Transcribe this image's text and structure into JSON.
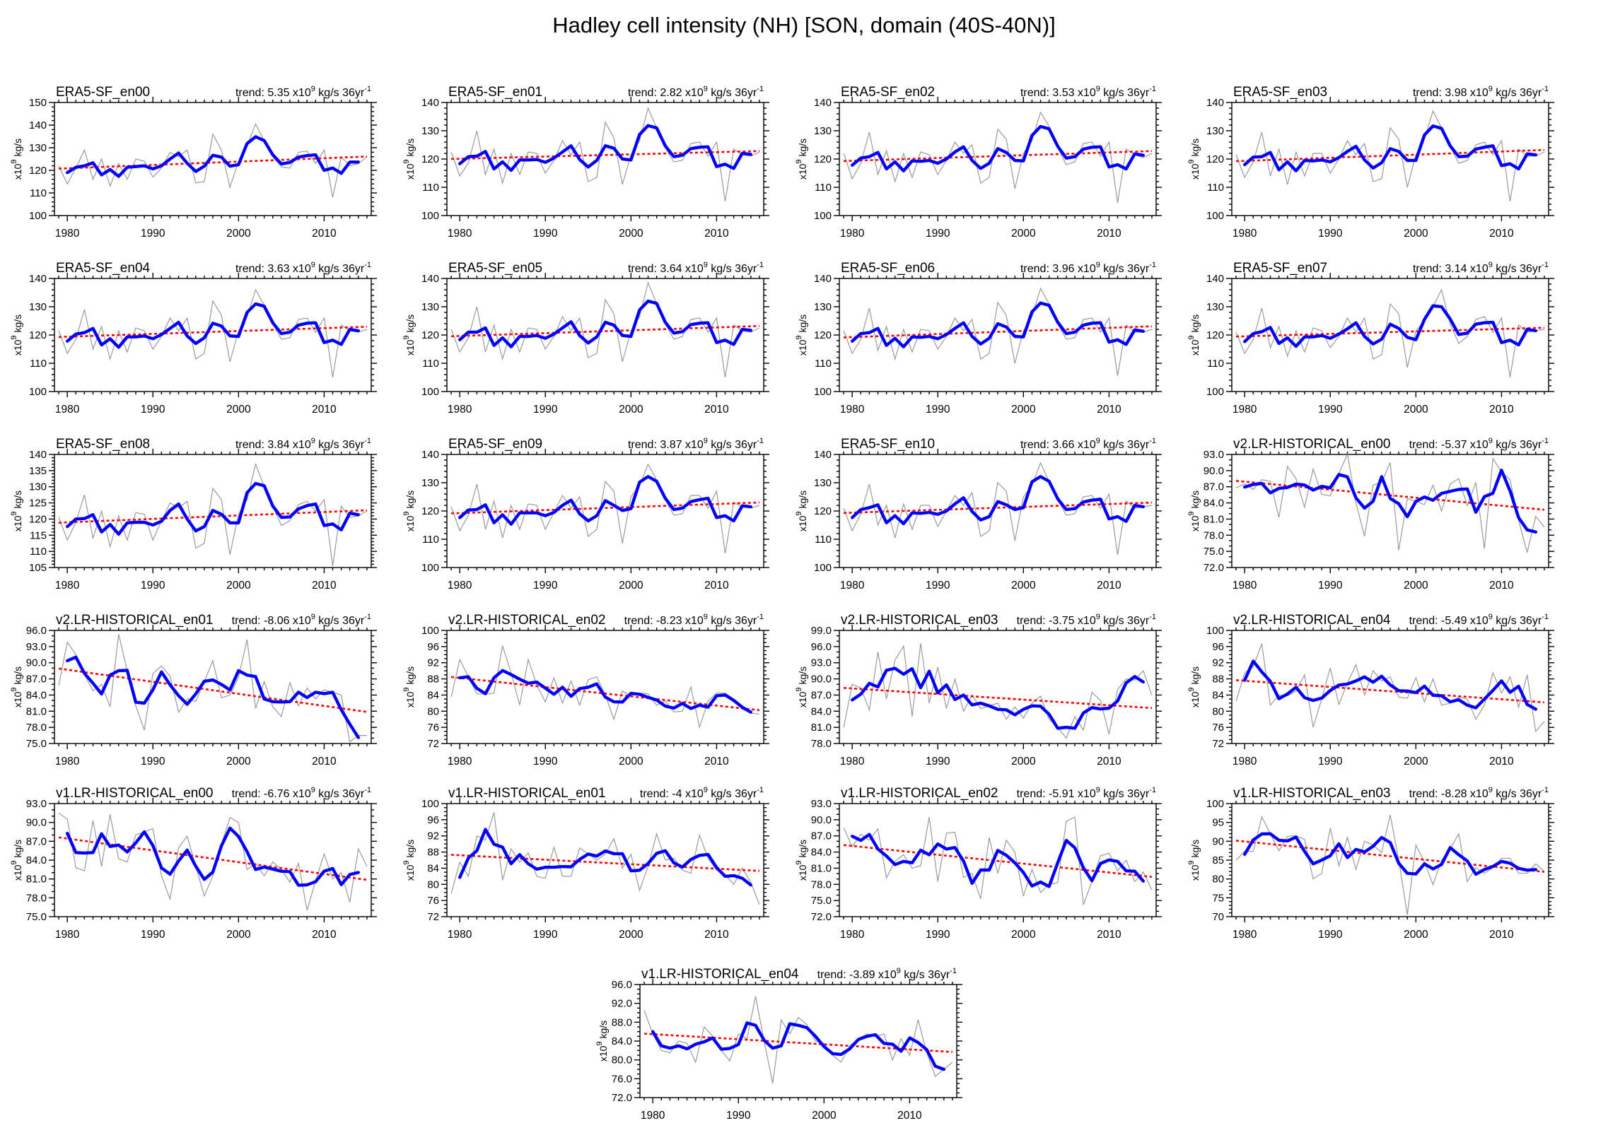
{
  "page_title": "Hadley cell intensity (NH) [SON, domain (40S-40N)]",
  "colors": {
    "raw_line": "#9a9a9a",
    "smoothed_line": "#0000ff",
    "trend_line": "#ff0000",
    "frame": "#000000"
  },
  "axis": {
    "start_year": 1979,
    "end_year": 2015,
    "x_range": [
      1978.5,
      2015.5
    ],
    "x_major_ticks": [
      1980,
      1990,
      2000,
      2010
    ],
    "x_minor_step": 1,
    "unit_label": {
      "prefix": "x10",
      "sup": "9",
      "suffix": " kg/s"
    }
  },
  "trend_label_parts": {
    "prefix": "trend: ",
    "mid": " x10",
    "sup": "9",
    "mid2": " kg/s 36yr",
    "sup2": "-1"
  },
  "chart_data": [
    {
      "type": "line",
      "title": "ERA5-SF_en00",
      "trend": "5.35",
      "ylim": [
        100,
        150
      ],
      "ystep": 10,
      "decimals": 0,
      "values": [
        122,
        114,
        121,
        129,
        116,
        125,
        113,
        123,
        116,
        125,
        124,
        117,
        121,
        128,
        126,
        129,
        114.5,
        115,
        136,
        129,
        112.5,
        124,
        131,
        140.5,
        133,
        126,
        121.5,
        121,
        128,
        128.5,
        123,
        129,
        108,
        126,
        122,
        123,
        126
      ]
    },
    {
      "type": "line",
      "title": "ERA5-SF_en01",
      "trend": "2.82",
      "ylim": [
        100,
        140
      ],
      "ystep": 10,
      "decimals": 0,
      "values": [
        122.5,
        114,
        118.5,
        130,
        114.5,
        123.5,
        111.5,
        122,
        114.5,
        122.5,
        122,
        115,
        119.5,
        126.5,
        121.5,
        126,
        112,
        113.5,
        133,
        127.5,
        111,
        121.5,
        126.5,
        138,
        131,
        124,
        119,
        119.5,
        125.5,
        126,
        121,
        126,
        105,
        123.5,
        121.5,
        121,
        122.5
      ]
    },
    {
      "type": "line",
      "title": "ERA5-SF_en02",
      "trend": "3.53",
      "ylim": [
        100,
        140
      ],
      "ystep": 10,
      "decimals": 0,
      "values": [
        122,
        113,
        118.5,
        129.5,
        114.5,
        123,
        112,
        122,
        113.5,
        122.5,
        121.5,
        114.5,
        119.5,
        126,
        122,
        125,
        111.5,
        113.5,
        130.5,
        127,
        109.5,
        122,
        126.5,
        136.5,
        131.5,
        124,
        118,
        119,
        125.5,
        126,
        121,
        126,
        104.5,
        123.5,
        121.5,
        120.5,
        122
      ]
    },
    {
      "type": "line",
      "title": "ERA5-SF_en03",
      "trend": "3.98",
      "ylim": [
        100,
        140
      ],
      "ystep": 10,
      "decimals": 0,
      "values": [
        121.5,
        113.5,
        119,
        129.5,
        114,
        123.5,
        111,
        122.5,
        114,
        122,
        122,
        115,
        120,
        126.5,
        121.5,
        125.5,
        112,
        113,
        131,
        127,
        110,
        121.5,
        127,
        137,
        131,
        124.5,
        118.5,
        119.5,
        125,
        126,
        121.5,
        126.5,
        105,
        123.5,
        121,
        121,
        122.5
      ]
    },
    {
      "type": "line",
      "title": "ERA5-SF_en04",
      "trend": "3.63",
      "ylim": [
        100,
        140
      ],
      "ystep": 10,
      "decimals": 0,
      "values": [
        121.5,
        113.5,
        118.5,
        129,
        115,
        123,
        111.5,
        121.5,
        114,
        122.5,
        121.5,
        115,
        119.5,
        126,
        121.5,
        126,
        111.5,
        113.5,
        132,
        127,
        110.5,
        121.5,
        126.5,
        136,
        130.5,
        124,
        118.5,
        119,
        125.5,
        126,
        121,
        126,
        105,
        123.5,
        121.5,
        121,
        122
      ]
    },
    {
      "type": "line",
      "title": "ERA5-SF_en05",
      "trend": "3.64",
      "ylim": [
        100,
        140
      ],
      "ystep": 10,
      "decimals": 0,
      "values": [
        122,
        114,
        119,
        130,
        114,
        123.5,
        111.5,
        122,
        114,
        122.5,
        122,
        115,
        119.5,
        126.5,
        121.5,
        126,
        112,
        113.5,
        132.5,
        127.5,
        110.5,
        121.5,
        126.5,
        138.5,
        131,
        124,
        118.5,
        119.5,
        125.5,
        126,
        121,
        126,
        105,
        123.5,
        121.5,
        121,
        122.5
      ]
    },
    {
      "type": "line",
      "title": "ERA5-SF_en06",
      "trend": "3.96",
      "ylim": [
        100,
        140
      ],
      "ystep": 10,
      "decimals": 0,
      "values": [
        121.5,
        113.5,
        118.5,
        129.5,
        114.5,
        123,
        111.5,
        122,
        114,
        122,
        121.5,
        115,
        119.5,
        126,
        121.5,
        125.5,
        111.5,
        113.5,
        131.5,
        127,
        110,
        121.5,
        126.5,
        136.5,
        131,
        124,
        118.5,
        119,
        125.5,
        126,
        121,
        126,
        105.5,
        123.5,
        121,
        121,
        122
      ]
    },
    {
      "type": "line",
      "title": "ERA5-SF_en07",
      "trend": "3.14",
      "ylim": [
        100,
        140
      ],
      "ystep": 10,
      "decimals": 0,
      "values": [
        121,
        113.5,
        118.5,
        129.5,
        115.5,
        123,
        112.5,
        121.5,
        114,
        122.5,
        121.5,
        115.5,
        119.5,
        126,
        121,
        126,
        111.5,
        113,
        131,
        127.5,
        108.5,
        121.5,
        125,
        130,
        136,
        124,
        117,
        119.5,
        125.5,
        126.5,
        121,
        126,
        105,
        123.5,
        121,
        121.5,
        122
      ]
    },
    {
      "type": "line",
      "title": "ERA5-SF_en08",
      "trend": "3.84",
      "ylim": [
        105,
        140
      ],
      "ystep": 5,
      "decimals": 0,
      "values": [
        120.5,
        113.5,
        119,
        127.5,
        114,
        122.5,
        111.5,
        121,
        113.5,
        122,
        121.5,
        113.5,
        119.5,
        125,
        123.5,
        125.5,
        111,
        112.5,
        129.5,
        126,
        109,
        121.5,
        126,
        137,
        130,
        124,
        118,
        119.5,
        124.5,
        125.5,
        122.5,
        126,
        105.5,
        124,
        120.5,
        121,
        122.5
      ]
    },
    {
      "type": "line",
      "title": "ERA5-SF_en09",
      "trend": "3.87",
      "ylim": [
        100,
        140
      ],
      "ystep": 10,
      "decimals": 0,
      "values": [
        121.5,
        113,
        118.5,
        129.5,
        113.5,
        123.5,
        110.5,
        122,
        113.5,
        122.5,
        122,
        113.5,
        119.5,
        125.5,
        121,
        125,
        111,
        113.5,
        130.5,
        127,
        108.5,
        125,
        129,
        136.5,
        131,
        124,
        118.5,
        119,
        125.5,
        125.5,
        121,
        127,
        105,
        123,
        121.5,
        121,
        122
      ]
    },
    {
      "type": "line",
      "title": "ERA5-SF_en10",
      "trend": "3.66",
      "ylim": [
        100,
        140
      ],
      "ystep": 10,
      "decimals": 0,
      "values": [
        121,
        113,
        119,
        129.5,
        115,
        122,
        110.5,
        122.5,
        113.5,
        122,
        122,
        114.5,
        120,
        125.5,
        122,
        126.5,
        111,
        113,
        130,
        127,
        109.5,
        125,
        129,
        137,
        130.5,
        124,
        118.5,
        119,
        125,
        125.5,
        121,
        126,
        104.5,
        123.5,
        121,
        121.5,
        122
      ]
    },
    {
      "type": "line",
      "title": "v2.LR-HISTORICAL_en00",
      "trend": "-5.37",
      "ylim": [
        72,
        93
      ],
      "ystep": 3,
      "decimals": 1,
      "values": [
        86.8,
        87.5,
        86.5,
        88.3,
        88,
        81.3,
        90.8,
        88.5,
        83.2,
        90.3,
        85.6,
        85.3,
        89.5,
        93,
        84,
        77.8,
        87.3,
        87.8,
        91.5,
        75.2,
        84.8,
        84.3,
        83.7,
        87.3,
        82.5,
        87.5,
        88.5,
        83.5,
        87.8,
        75.5,
        92.2,
        89.7,
        88.3,
        80.7,
        74.8,
        81.5,
        79.5
      ]
    },
    {
      "type": "line",
      "title": "v2.LR-HISTORICAL_en01",
      "trend": "-8.06",
      "ylim": [
        75,
        96
      ],
      "ystep": 3,
      "decimals": 1,
      "values": [
        85.8,
        93.8,
        91.5,
        87.8,
        84.8,
        86,
        81.8,
        95.3,
        88.5,
        82,
        77.5,
        88,
        89.4,
        87.5,
        80.8,
        83.3,
        82.8,
        86.5,
        90.4,
        83.5,
        84,
        87.3,
        94.3,
        81.5,
        86.5,
        81.8,
        80,
        86.3,
        82,
        85.3,
        83.3,
        85,
        84.5,
        84,
        75.3,
        76.5,
        76.5
      ]
    },
    {
      "type": "line",
      "title": "v2.LR-HISTORICAL_en02",
      "trend": "-8.23",
      "ylim": [
        72,
        100
      ],
      "ystep": 4,
      "decimals": 0,
      "values": [
        83.5,
        92.8,
        88.5,
        84.3,
        84.2,
        84.5,
        96.2,
        89.5,
        81.5,
        92.8,
        86.5,
        82.3,
        88.3,
        82,
        87.5,
        81.5,
        87.8,
        88.5,
        84,
        78,
        85,
        83.8,
        84.5,
        84.3,
        81.5,
        82.5,
        79.8,
        80,
        86,
        76,
        82.5,
        84.5,
        84.5,
        83,
        80.5,
        79.5,
        79.3
      ]
    },
    {
      "type": "line",
      "title": "v2.LR-HISTORICAL_en03",
      "trend": "-3.75",
      "ylim": [
        78,
        99
      ],
      "ystep": 3,
      "decimals": 1,
      "values": [
        81,
        89,
        88.3,
        84.2,
        95,
        86.3,
        93.5,
        96.1,
        83,
        96.6,
        85.5,
        92.2,
        84.5,
        90,
        84,
        87,
        84.5,
        85,
        85.5,
        82.5,
        84.8,
        82.7,
        85.5,
        86.8,
        82.5,
        81,
        79,
        83,
        80.5,
        87.5,
        86,
        79.7,
        88,
        90,
        89.8,
        91.5,
        87
      ]
    },
    {
      "type": "line",
      "title": "v2.LR-HISTORICAL_en04",
      "trend": "-5.49",
      "ylim": [
        72,
        100
      ],
      "ystep": 4,
      "decimals": 0,
      "values": [
        82.5,
        89.5,
        91,
        96.7,
        81.5,
        84,
        83.8,
        85,
        89,
        76,
        83,
        90.7,
        81.7,
        87,
        91.5,
        84,
        90,
        87.5,
        88.5,
        83.5,
        83.2,
        88.3,
        82.3,
        88,
        81.5,
        82,
        83.5,
        83,
        78,
        81.5,
        89.5,
        84.5,
        88.5,
        81,
        89,
        75,
        77.5
      ]
    },
    {
      "type": "line",
      "title": "v1.LR-HISTORICAL_en00",
      "trend": "-6.76",
      "ylim": [
        75,
        93
      ],
      "ystep": 3,
      "decimals": 1,
      "values": [
        91.5,
        90.5,
        82.8,
        82.3,
        90.3,
        83,
        91.3,
        84.2,
        83.7,
        88,
        88.5,
        89,
        81.5,
        77.8,
        86,
        87.8,
        83,
        78.3,
        81.5,
        86.5,
        90.8,
        90,
        82.5,
        83.5,
        81.5,
        83.7,
        82.5,
        80.5,
        83.5,
        76,
        80.7,
        85,
        81,
        82,
        77.3,
        85.8,
        83
      ]
    },
    {
      "type": "line",
      "title": "v1.LR-HISTORICAL_en01",
      "trend": "-4",
      "ylim": [
        72,
        100
      ],
      "ystep": 4,
      "decimals": 0,
      "values": [
        77.7,
        85.5,
        82,
        92,
        91,
        97.8,
        81,
        88.8,
        85.5,
        87.8,
        82,
        81.5,
        89.2,
        82,
        82,
        89,
        87.5,
        86,
        87.5,
        91.3,
        84,
        87.5,
        78.5,
        84.5,
        92.5,
        86,
        86.5,
        83.5,
        82.8,
        92.2,
        86.5,
        83.5,
        82.5,
        80,
        84,
        80.5,
        75
      ]
    },
    {
      "type": "line",
      "title": "v1.LR-HISTORICAL_en02",
      "trend": "-5.91",
      "ylim": [
        72,
        93
      ],
      "ystep": 3,
      "decimals": 1,
      "values": [
        88.5,
        85,
        87.3,
        86.2,
        88.3,
        79.2,
        82.3,
        83.5,
        81,
        81.5,
        90.5,
        78.5,
        87.5,
        87.7,
        79.3,
        80,
        75.3,
        86.7,
        80,
        86.2,
        84,
        75.8,
        80.8,
        76.5,
        78,
        78.3,
        89.7,
        90.5,
        74.2,
        78.5,
        83.3,
        83.8,
        80.5,
        82.5,
        78.5,
        80.3,
        77
      ]
    },
    {
      "type": "line",
      "title": "v1.LR-HISTORICAL_en03",
      "trend": "-8.28",
      "ylim": [
        70,
        100
      ],
      "ystep": 5,
      "decimals": 0,
      "values": [
        85,
        87.3,
        87.3,
        96.5,
        92,
        87.5,
        91.3,
        91.5,
        90.5,
        80,
        81.5,
        93.5,
        83.5,
        91,
        82.5,
        90,
        89,
        87,
        97,
        85,
        70.5,
        89,
        84.5,
        78.5,
        85,
        88,
        92,
        79.3,
        83,
        81.5,
        83,
        85.5,
        85.5,
        81.5,
        81.5,
        84,
        82
      ]
    },
    {
      "type": "line",
      "title": "v1.LR-HISTORICAL_en04",
      "trend": "-3.89",
      "ylim": [
        72,
        96
      ],
      "ystep": 4,
      "decimals": 1,
      "values": [
        90.5,
        85.5,
        82,
        81.5,
        84,
        83.5,
        79.5,
        87,
        85,
        82,
        79.8,
        85.5,
        84.5,
        93.5,
        84,
        75,
        88.5,
        85.5,
        89,
        87.5,
        84,
        83.5,
        81,
        79.5,
        83,
        84.5,
        85.5,
        85,
        85.5,
        80,
        84.5,
        81,
        88.5,
        81.5,
        76.5,
        78,
        79.5
      ]
    }
  ]
}
